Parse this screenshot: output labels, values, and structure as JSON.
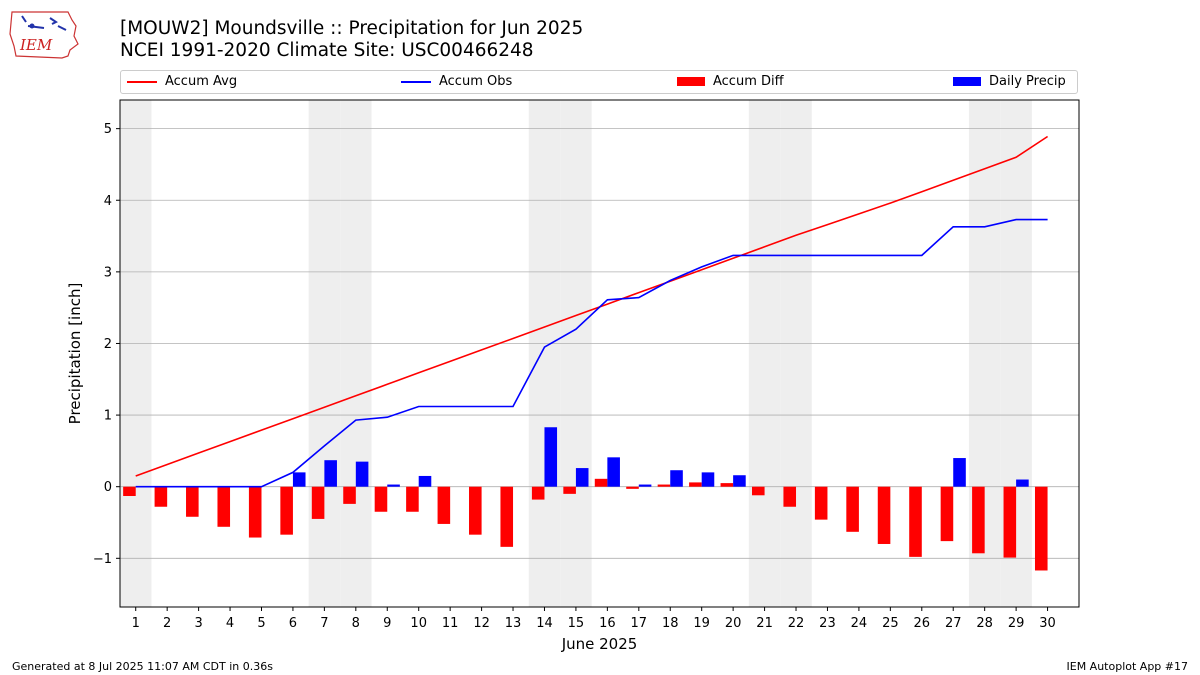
{
  "header": {
    "title_line1": "[MOUW2] Moundsville :: Precipitation for Jun 2025",
    "title_line2": "NCEI 1991-2020 Climate Site: USC00466248",
    "logo_text": "IEM"
  },
  "footer": {
    "generated": "Generated at 8 Jul 2025 11:07 AM CDT in 0.36s",
    "app": "IEM Autoplot App #17"
  },
  "colors": {
    "accum_avg": "#ff0000",
    "accum_obs": "#0000ff",
    "accum_diff": "#ff0000",
    "daily_precip": "#0000ff",
    "weekend_shade": "#eeeeee",
    "grid": "#b0b0b0"
  },
  "chart_data": {
    "type": "bar",
    "title": "[MOUW2] Moundsville :: Precipitation for Jun 2025",
    "subtitle": "NCEI 1991-2020 Climate Site: USC00466248",
    "xlabel": "June 2025",
    "ylabel": "Precipitation [inch]",
    "ylim": [
      -1.68,
      5.4
    ],
    "yticks": [
      -1,
      0,
      1,
      2,
      3,
      4,
      5
    ],
    "grid": "horizontal",
    "legend_position": "top",
    "x": [
      1,
      2,
      3,
      4,
      5,
      6,
      7,
      8,
      9,
      10,
      11,
      12,
      13,
      14,
      15,
      16,
      17,
      18,
      19,
      20,
      21,
      22,
      23,
      24,
      25,
      26,
      27,
      28,
      29,
      30
    ],
    "weekend_days": [
      1,
      7,
      8,
      14,
      15,
      21,
      22,
      28,
      29
    ],
    "series": [
      {
        "name": "Accum Avg",
        "kind": "line",
        "values": [
          0.15,
          0.31,
          0.47,
          0.63,
          0.79,
          0.95,
          1.11,
          1.27,
          1.43,
          1.59,
          1.75,
          1.91,
          2.07,
          2.23,
          2.39,
          2.55,
          2.71,
          2.87,
          3.03,
          3.19,
          3.35,
          3.51,
          3.66,
          3.81,
          3.96,
          4.12,
          4.28,
          4.44,
          4.6,
          4.89
        ]
      },
      {
        "name": "Accum Obs",
        "kind": "line",
        "values": [
          0.0,
          0.0,
          0.0,
          0.0,
          0.0,
          0.2,
          0.57,
          0.93,
          0.97,
          1.12,
          1.12,
          1.12,
          1.12,
          1.95,
          2.2,
          2.61,
          2.64,
          2.88,
          3.07,
          3.23,
          3.23,
          3.23,
          3.23,
          3.23,
          3.23,
          3.23,
          3.63,
          3.63,
          3.73,
          3.73
        ]
      },
      {
        "name": "Accum Diff",
        "kind": "bar",
        "values": [
          -0.13,
          -0.28,
          -0.42,
          -0.56,
          -0.71,
          -0.67,
          -0.45,
          -0.24,
          -0.35,
          -0.35,
          -0.52,
          -0.67,
          -0.84,
          -0.18,
          -0.1,
          0.11,
          -0.03,
          0.03,
          0.06,
          0.05,
          -0.12,
          -0.28,
          -0.46,
          -0.63,
          -0.8,
          -0.98,
          -0.76,
          -0.93,
          -0.99,
          -1.17
        ]
      },
      {
        "name": "Daily Precip",
        "kind": "bar",
        "values": [
          0,
          0,
          0,
          0,
          0,
          0.2,
          0.37,
          0.35,
          0.03,
          0.15,
          0,
          0,
          0,
          0.83,
          0.26,
          0.41,
          0.03,
          0.23,
          0.2,
          0.16,
          0,
          0,
          0,
          0,
          0,
          0,
          0.4,
          0,
          0.1,
          0
        ]
      }
    ]
  }
}
